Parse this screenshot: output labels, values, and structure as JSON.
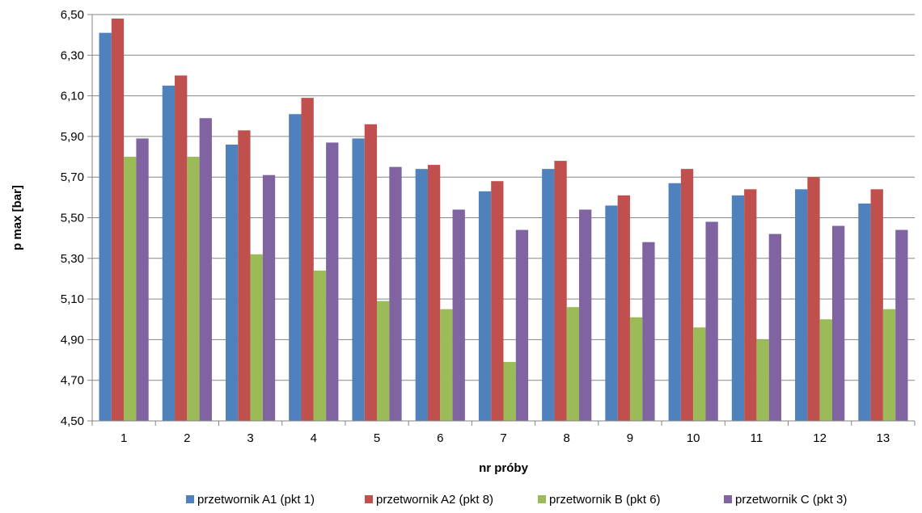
{
  "chart_data": {
    "type": "bar",
    "title": "",
    "xlabel": "nr próby",
    "ylabel": "p max [bar]",
    "ylim": [
      4.5,
      6.5
    ],
    "yticks": [
      "4,50",
      "4,70",
      "4,90",
      "5,10",
      "5,30",
      "5,50",
      "5,70",
      "5,90",
      "6,10",
      "6,30",
      "6,50"
    ],
    "grid": true,
    "legend_position": "bottom",
    "categories": [
      "1",
      "2",
      "3",
      "4",
      "5",
      "6",
      "7",
      "8",
      "9",
      "10",
      "11",
      "12",
      "13"
    ],
    "series": [
      {
        "name": "przetwornik A1 (pkt 1)",
        "color": "#4f81bd",
        "values": [
          6.41,
          6.15,
          5.86,
          6.01,
          5.89,
          5.74,
          5.63,
          5.74,
          5.56,
          5.67,
          5.61,
          5.64,
          5.57
        ]
      },
      {
        "name": "przetwornik A2 (pkt 8)",
        "color": "#c0504d",
        "values": [
          6.48,
          6.2,
          5.93,
          6.09,
          5.96,
          5.76,
          5.68,
          5.78,
          5.61,
          5.74,
          5.64,
          5.7,
          5.64
        ]
      },
      {
        "name": "przetwornik B (pkt 6)",
        "color": "#9bbb59",
        "values": [
          5.8,
          5.8,
          5.32,
          5.24,
          5.09,
          5.05,
          4.79,
          5.06,
          5.01,
          4.96,
          4.9,
          5.0,
          5.05
        ]
      },
      {
        "name": "przetwornik C (pkt 3)",
        "color": "#8064a2",
        "values": [
          5.89,
          5.99,
          5.71,
          5.87,
          5.75,
          5.54,
          5.44,
          5.54,
          5.38,
          5.48,
          5.42,
          5.46,
          5.44
        ]
      }
    ]
  }
}
